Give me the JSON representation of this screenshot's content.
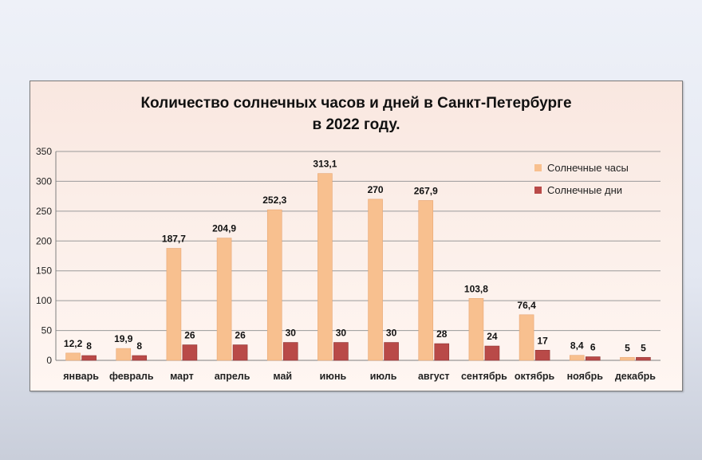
{
  "chart_data": {
    "type": "bar",
    "title_lines": [
      "Количество солнечных часов и дней в Санкт-Петербурге",
      "в 2022 году."
    ],
    "categories": [
      "январь",
      "февраль",
      "март",
      "апрель",
      "май",
      "июнь",
      "июль",
      "август",
      "сентябрь",
      "октябрь",
      "ноябрь",
      "декабрь"
    ],
    "series": [
      {
        "name": "Солнечные часы",
        "color": "#f8c08f",
        "values": [
          12.2,
          19.9,
          187.7,
          204.9,
          252.3,
          313.1,
          270,
          267.9,
          103.8,
          76.4,
          8.4,
          5
        ],
        "labels": [
          "12,2",
          "19,9",
          "187,7",
          "204,9",
          "252,3",
          "313,1",
          "270",
          "267,9",
          "103,8",
          "76,4",
          "8,4",
          "5"
        ]
      },
      {
        "name": "Солнечные дни",
        "color": "#b94a48",
        "values": [
          8,
          8,
          26,
          26,
          30,
          30,
          30,
          28,
          24,
          17,
          6,
          5
        ],
        "labels": [
          "8",
          "8",
          "26",
          "26",
          "30",
          "30",
          "30",
          "28",
          "24",
          "17",
          "6",
          "5"
        ]
      }
    ],
    "ylim": [
      0,
      350
    ],
    "yticks": [
      0,
      50,
      100,
      150,
      200,
      250,
      300,
      350
    ],
    "grid": true,
    "legend": "top-right"
  }
}
